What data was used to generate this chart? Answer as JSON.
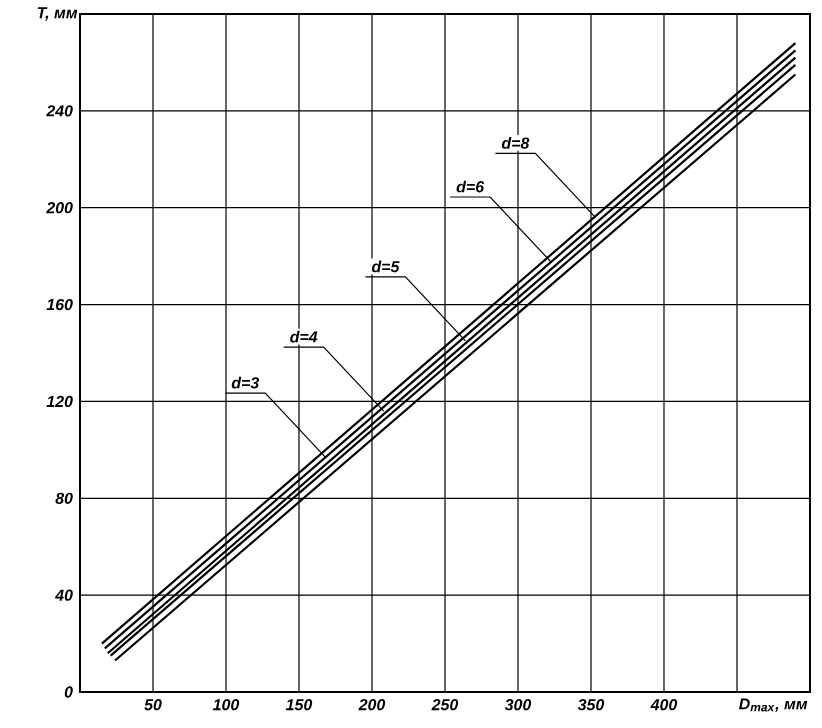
{
  "chart_data": {
    "type": "line",
    "xlabel": "D$_{max}$, мм",
    "ylabel": "T, мм",
    "xlim": [
      0,
      500
    ],
    "ylim": [
      0,
      280
    ],
    "xticks": [
      50,
      100,
      150,
      200,
      250,
      300,
      350,
      400,
      {
        "value": 450,
        "label": null
      }
    ],
    "yticks": [
      0,
      40,
      80,
      120,
      160,
      200,
      240
    ],
    "grid": true,
    "color": "#000000",
    "line_style": "solid",
    "marker": "none",
    "series": [
      {
        "x": [
          15,
          490
        ],
        "values": [
          20,
          268
        ]
      },
      {
        "x": [
          17,
          490
        ],
        "values": [
          18,
          265
        ]
      },
      {
        "x": [
          19,
          490
        ],
        "values": [
          16,
          262
        ]
      },
      {
        "x": [
          21,
          490
        ],
        "values": [
          15,
          259
        ]
      },
      {
        "x": [
          24,
          490
        ],
        "values": [
          13,
          255
        ]
      }
    ],
    "annotations": [
      {
        "text": "d=3",
        "x": 168,
        "y": 97
      },
      {
        "text": "d=4",
        "x": 208,
        "y": 116
      },
      {
        "text": "d=5",
        "x": 264,
        "y": 145
      },
      {
        "text": "d=6",
        "x": 322,
        "y": 178
      },
      {
        "text": "d=8",
        "x": 353,
        "y": 196
      }
    ]
  }
}
